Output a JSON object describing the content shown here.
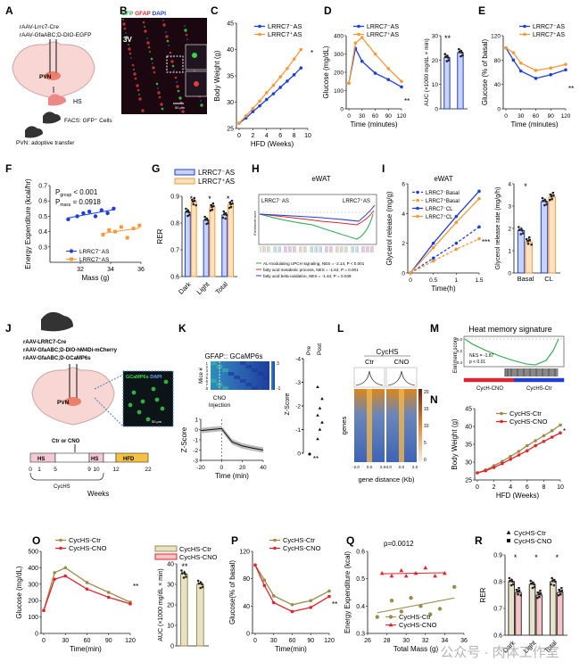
{
  "colors": {
    "blue": "#1f3fd6",
    "orange": "#f59a3a",
    "olive": "#9a8c4a",
    "red": "#e0252e",
    "grey": "#888888",
    "lightblue": "#c9d3f5",
    "lightorange": "#fde2c2"
  },
  "panels": {
    "A": "A",
    "B": "B",
    "C": "C",
    "D": "D",
    "E": "E",
    "F": "F",
    "G": "G",
    "H": "H",
    "I": "I",
    "J": "J",
    "K": "K",
    "L": "L",
    "M": "M",
    "N": "N",
    "O": "O",
    "P": "P",
    "Q": "Q",
    "R": "R"
  },
  "A": {
    "line1": "rAAV-Lrrc7-Cre",
    "line2": "rAAV-GfaABC",
    "line2b": "D-DIO-EGFP",
    "pvn": "PVN",
    "hs": "HS",
    "facs": "FACS: GFP⁺ Cells",
    "transfer": "PVN: adoptive transfer"
  },
  "B": {
    "gfp": "GFP",
    "gfap": "GFAP",
    "dapi": "DAPI",
    "region": "3V",
    "scale": "50 μm"
  },
  "legend_as": {
    "minus": "LRRC7⁻AS",
    "plus": "LRRC7⁺AS"
  },
  "C": {
    "ylabel": "Body Weight (g)",
    "xlabel": "HFD (Weeks)",
    "sig": "*",
    "chart_data": {
      "type": "line",
      "x": [
        0,
        1,
        2,
        3,
        4,
        5,
        6,
        7,
        8,
        9
      ],
      "series": [
        {
          "name": "LRRC7⁻AS",
          "values": [
            26,
            27,
            28.2,
            29.3,
            30.5,
            31.6,
            32.8,
            34,
            35.2,
            36.5
          ]
        },
        {
          "name": "LRRC7⁺AS",
          "values": [
            26,
            27.4,
            28.8,
            30.2,
            31.8,
            33.2,
            34.8,
            36.4,
            38.2,
            40
          ]
        }
      ],
      "ylim": [
        25,
        45
      ],
      "xticks": [
        0,
        2,
        4,
        6,
        8,
        10
      ],
      "yticks": [
        25,
        30,
        35,
        40,
        45
      ]
    }
  },
  "D": {
    "ylabel": "Glucose (mg/dL)",
    "xlabel": "Time (minutes)",
    "sig": "**",
    "chart_data": {
      "type": "line",
      "x": [
        0,
        15,
        30,
        60,
        90,
        120
      ],
      "series": [
        {
          "name": "LRRC7⁻AS",
          "values": [
            140,
            330,
            260,
            195,
            160,
            120
          ]
        },
        {
          "name": "LRRC7⁺AS",
          "values": [
            140,
            360,
            390,
            300,
            220,
            150
          ]
        }
      ],
      "ylim": [
        0,
        400
      ],
      "xticks": [
        0,
        30,
        60,
        90,
        120
      ],
      "yticks": [
        0,
        100,
        200,
        300,
        400
      ]
    }
  },
  "D2": {
    "ylabel": "AUC (×1000 mg/dL × min)",
    "sig": "**",
    "chart_data": {
      "type": "bar",
      "categories": [
        "LRRC7⁻AS",
        "LRRC7⁺AS"
      ],
      "values": [
        21,
        23
      ],
      "ylim": [
        0,
        30
      ],
      "yticks": [
        0,
        10,
        20,
        30
      ]
    }
  },
  "E": {
    "ylabel": "Glucose (% of basal)",
    "xlabel": "Time (minutes)",
    "sig": "**",
    "chart_data": {
      "type": "line",
      "x": [
        0,
        15,
        30,
        60,
        90,
        120
      ],
      "series": [
        {
          "name": "LRRC7⁻AS",
          "values": [
            100,
            80,
            62,
            50,
            56,
            64
          ]
        },
        {
          "name": "LRRC7⁺AS",
          "values": [
            100,
            92,
            75,
            63,
            67,
            73
          ]
        }
      ],
      "ylim": [
        0,
        120
      ],
      "xticks": [
        0,
        30,
        60,
        90,
        120
      ],
      "yticks": [
        0,
        40,
        80,
        120
      ]
    }
  },
  "F": {
    "ylabel": "Energy Expenditure (kcal/hr)",
    "xlabel": "Mass (g)",
    "pgroup": "P",
    "pgroup_sub": "group",
    "pgroup_val": " < 0.001",
    "pmass": "P",
    "pmass_sub": "mass",
    "pmass_val": " = 0.0918",
    "chart_data": {
      "type": "scatter",
      "series": [
        {
          "name": "LRRC7⁻AS",
          "x": [
            31.2,
            31.8,
            32.2,
            32.6,
            33,
            33.4,
            33.8,
            34.2
          ],
          "y": [
            0.48,
            0.5,
            0.52,
            0.53,
            0.5,
            0.54,
            0.52,
            0.55
          ]
        },
        {
          "name": "LRRC7⁺AS",
          "x": [
            33.5,
            33.9,
            34.3,
            34.7,
            35.1,
            35.5,
            35.9
          ],
          "y": [
            0.38,
            0.41,
            0.4,
            0.43,
            0.36,
            0.42,
            0.44
          ]
        }
      ],
      "xlim": [
        30,
        36
      ],
      "ylim": [
        0.2,
        0.7
      ],
      "xticks": [
        32,
        34,
        36
      ],
      "yticks": [
        0.3,
        0.4,
        0.5,
        0.6,
        0.7
      ]
    }
  },
  "G": {
    "ylabel": "RER",
    "sig": [
      "*",
      "*",
      "*"
    ],
    "chart_data": {
      "type": "bar",
      "categories": [
        "Dark",
        "Light",
        "Total"
      ],
      "series": [
        {
          "name": "LRRC7⁻AS",
          "values": [
            0.84,
            0.81,
            0.83
          ]
        },
        {
          "name": "LRRC7⁺AS",
          "values": [
            0.88,
            0.86,
            0.87
          ]
        }
      ],
      "ylim": [
        0.6,
        0.9
      ],
      "yticks": [
        0.6,
        0.7,
        0.8,
        0.9
      ]
    }
  },
  "H": {
    "title": "eWAT",
    "left": "LRRC7⁻AS",
    "right": "LRRC7⁺AS",
    "ylabel": "Enrichment score",
    "leg1": "AL-modulating UPCH signaling, NES = -2.14, P < 0.001",
    "leg2": "fatty acid metabolic process, NES = -1.64, P = 0.001",
    "leg3": "fatty acid beta-oxidation, NES = -1.44, P = 0.049"
  },
  "I": {
    "title": "eWAT",
    "ylabel": "Glycerol release (mg/g)",
    "xlabel": "Time(h)",
    "sig": "***",
    "leg": [
      "LRRC7⁻Basal",
      "LRRC7⁺Basal",
      "LRRC7⁻CL",
      "LRRC7⁺CL"
    ],
    "chart_data": {
      "type": "line",
      "x": [
        0,
        0.5,
        1,
        1.5
      ],
      "series": [
        {
          "name": "LRRC7⁻Basal",
          "values": [
            0,
            1,
            2,
            3.1
          ]
        },
        {
          "name": "LRRC7⁺Basal",
          "values": [
            0,
            0.8,
            1.6,
            2.3
          ]
        },
        {
          "name": "LRRC7⁻CL",
          "values": [
            0,
            2,
            3.8,
            5.5
          ]
        },
        {
          "name": "LRRC7⁺CL",
          "values": [
            0,
            1.7,
            3.4,
            5
          ]
        }
      ],
      "ylim": [
        0,
        6
      ],
      "xticks": [
        0,
        0.5,
        1,
        1.5
      ],
      "yticks": [
        0,
        2,
        4,
        6
      ]
    }
  },
  "I2": {
    "ylabel": "Glycerol release rate (mg/g/h)",
    "sig": "*",
    "chart_data": {
      "type": "bar",
      "categories": [
        "Basal",
        "CL"
      ],
      "series": [
        {
          "name": "LRRC7⁻AS",
          "values": [
            1.9,
            3.2
          ]
        },
        {
          "name": "LRRC7⁺AS",
          "values": [
            1.4,
            3.4
          ]
        }
      ],
      "ylim": [
        0,
        4
      ],
      "yticks": [
        0,
        1,
        2,
        3,
        4
      ]
    }
  },
  "J": {
    "line1": "rAAV-LRRC7-Cre",
    "line2": "rAAV-GfaABC",
    "line2b": "D-DIO-hM4Di-mCherry",
    "line3": "rAAV-GfaABC",
    "line3b": "D-GCaMP6s",
    "pvn": "PVN",
    "micro1": "GCaMP6s",
    "micro2": "DAPI",
    "scale": "50 μm",
    "ctrcno": "Ctr or CNO",
    "hs": "HS",
    "hfd": "HFD",
    "timeline": [
      "0",
      "1",
      "5",
      "9",
      "10",
      "12",
      "22"
    ],
    "cychs": "CycHS",
    "weeks": "Weeks"
  },
  "K": {
    "title": "GFAP:: GCaMP6s",
    "mice": "Mice #",
    "cno": "CNO",
    "injection": "Injection",
    "zscore": "Z-Score",
    "xlabel": "Time (min)",
    "pre": "Pre",
    "post": "Post",
    "sig": "**",
    "heat_rows": [
      "1",
      "2",
      "3",
      "4",
      "5",
      "6",
      "7",
      "8"
    ],
    "heat_ticks": [
      "3",
      "-1"
    ],
    "chart_data": {
      "type": "line",
      "x": [
        -20,
        -10,
        0,
        10,
        20,
        30,
        40
      ],
      "values": [
        -0.1,
        0,
        0.1,
        -1.2,
        -1.6,
        -1.8,
        -2
      ],
      "ylim": [
        -3,
        1
      ],
      "xticks": [
        -20,
        0,
        20,
        40
      ],
      "yticks": [
        -3,
        -2,
        -1,
        0,
        1
      ]
    },
    "chart_data2": {
      "type": "scatter",
      "categories": [
        "Pre",
        "Post"
      ],
      "values": [
        0,
        -1.5
      ],
      "ylim": [
        -4,
        0
      ],
      "yticks": [
        0,
        -1,
        -2,
        -3,
        -4
      ]
    }
  },
  "L": {
    "title": "CycHS",
    "ctr": "Ctr",
    "cno": "CNO",
    "ylabel": "genes",
    "xlabel": "gene distance (Kb)",
    "ticks": [
      "-2.0",
      "0.0",
      "2.0",
      "-2.0",
      "0.0",
      "2.0"
    ],
    "cbar": [
      "20",
      "15",
      "10",
      "5",
      "0"
    ]
  },
  "M": {
    "title": "Heat memory signature",
    "ylabel": "Enriment score",
    "nes": "NES = -1.87",
    "p": "p < 0.01",
    "left": "CycH-CNO",
    "right": "CycHS-Ctr",
    "yticks": [
      "0.0",
      "-0.2",
      "-0.4"
    ]
  },
  "N": {
    "ylabel": "Body Weight (g)",
    "xlabel": "HFD (Weeks)",
    "sig": "*",
    "leg": [
      "CycHS-Ctr",
      "CycHS-CNO"
    ],
    "chart_data": {
      "type": "line",
      "x": [
        0,
        1,
        2,
        3,
        4,
        5,
        6,
        7,
        8,
        9,
        10
      ],
      "series": [
        {
          "name": "CycHS-Ctr",
          "values": [
            27,
            27.8,
            29,
            30.2,
            31.6,
            33,
            34.6,
            36,
            37.4,
            38.8,
            40.4
          ]
        },
        {
          "name": "CycHS-CNO",
          "values": [
            27,
            27.6,
            28.5,
            29.6,
            30.8,
            32,
            33.2,
            34.6,
            35.8,
            37,
            38.2
          ]
        }
      ],
      "ylim": [
        25,
        45
      ],
      "xticks": [
        0,
        2,
        4,
        6,
        8,
        10
      ],
      "yticks": [
        25,
        30,
        35,
        40,
        45
      ]
    }
  },
  "O": {
    "ylabel": "Glucose (mg/dL)",
    "xlabel": "Time(min)",
    "sig": "**",
    "leg": [
      "CycHS-Ctr",
      "CycHS-CNO"
    ],
    "chart_data": {
      "type": "line",
      "x": [
        0,
        15,
        30,
        60,
        90,
        120
      ],
      "series": [
        {
          "name": "CycHS-Ctr",
          "values": [
            140,
            370,
            400,
            310,
            250,
            190
          ]
        },
        {
          "name": "CycHS-CNO",
          "values": [
            140,
            330,
            350,
            270,
            220,
            180
          ]
        }
      ],
      "ylim": [
        0,
        500
      ],
      "xticks": [
        0,
        30,
        60,
        90,
        120
      ],
      "yticks": [
        0,
        100,
        200,
        300,
        400,
        500
      ]
    }
  },
  "O2": {
    "ylabel": "AUC (×1000 mg/dL × min)",
    "sig": "**",
    "leg": [
      "CycHS-Ctr",
      "CycHS-CNO"
    ],
    "chart_data": {
      "type": "bar",
      "categories": [
        "CycHS-Ctr",
        "CycHS-CNO"
      ],
      "values": [
        35,
        30
      ],
      "ylim": [
        0,
        40
      ],
      "yticks": [
        0,
        10,
        20,
        30,
        40
      ]
    }
  },
  "P": {
    "ylabel": "Glucose(% of basal)",
    "xlabel": "Time(min)",
    "sig": "**",
    "leg": [
      "CycHS-Ctr",
      "CycHS-CNO"
    ],
    "chart_data": {
      "type": "line",
      "x": [
        0,
        15,
        30,
        60,
        90,
        120
      ],
      "series": [
        {
          "name": "CycHS-Ctr",
          "values": [
            100,
            78,
            55,
            42,
            48,
            62
          ]
        },
        {
          "name": "CycHS-CNO",
          "values": [
            100,
            70,
            45,
            32,
            38,
            54
          ]
        }
      ],
      "ylim": [
        0,
        120
      ],
      "xticks": [
        0,
        30,
        60,
        90,
        120
      ],
      "yticks": [
        0,
        40,
        80,
        120
      ]
    }
  },
  "Q": {
    "ylabel": "Energy Expenditure (kcal)",
    "xlabel": "Total Mass (g)",
    "p": "p=0.0012",
    "leg": [
      "CycHS-Ctr",
      "CycHS-CNO"
    ],
    "chart_data": {
      "type": "scatter",
      "series": [
        {
          "name": "CycHS-Ctr",
          "x": [
            27,
            28.5,
            29.5,
            30.5,
            31.5,
            32.5,
            33.5,
            35
          ],
          "y": [
            0.36,
            0.42,
            0.38,
            0.43,
            0.4,
            0.37,
            0.39,
            0.47
          ]
        },
        {
          "name": "CycHS-CNO",
          "x": [
            27.5,
            28.5,
            29.5,
            30,
            31,
            32,
            33,
            34
          ],
          "y": [
            0.52,
            0.51,
            0.53,
            0.51,
            0.52,
            0.54,
            0.51,
            0.52
          ]
        }
      ],
      "xlim": [
        26,
        36
      ],
      "ylim": [
        0.3,
        0.6
      ],
      "xticks": [
        26,
        28,
        30,
        32,
        34,
        36
      ],
      "yticks": [
        0.3,
        0.4,
        0.5,
        0.6
      ]
    }
  },
  "R": {
    "ylabel": "RER",
    "sig": [
      "*",
      "*",
      "*"
    ],
    "leg": [
      "CycHS-Ctr",
      "CycHS-CNO"
    ],
    "chart_data": {
      "type": "bar",
      "categories": [
        "Dark",
        "Light",
        "Total"
      ],
      "series": [
        {
          "name": "CycHS-Ctr",
          "values": [
            0.8,
            0.79,
            0.8
          ]
        },
        {
          "name": "CycHS-CNO",
          "values": [
            0.76,
            0.75,
            0.76
          ]
        }
      ],
      "ylim": [
        0.6,
        0.9
      ],
      "yticks": [
        0.6,
        0.7,
        0.8,
        0.9
      ]
    }
  },
  "watermark": "公众号 · 肉体工作室"
}
